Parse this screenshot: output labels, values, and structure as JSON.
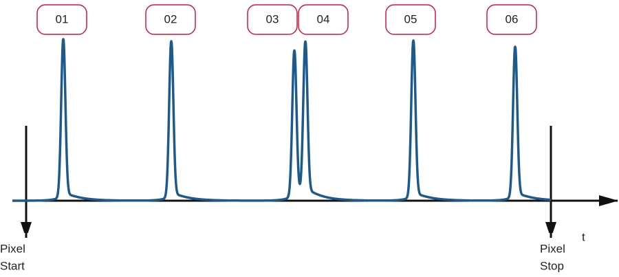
{
  "peaks": {
    "labels": [
      "01",
      "02",
      "03",
      "04",
      "05",
      "06"
    ]
  },
  "axis_label": "t",
  "start_marker": {
    "line1": "Pixel",
    "line2": "Start"
  },
  "stop_marker": {
    "line1": "Pixel",
    "line2": "Stop"
  }
}
